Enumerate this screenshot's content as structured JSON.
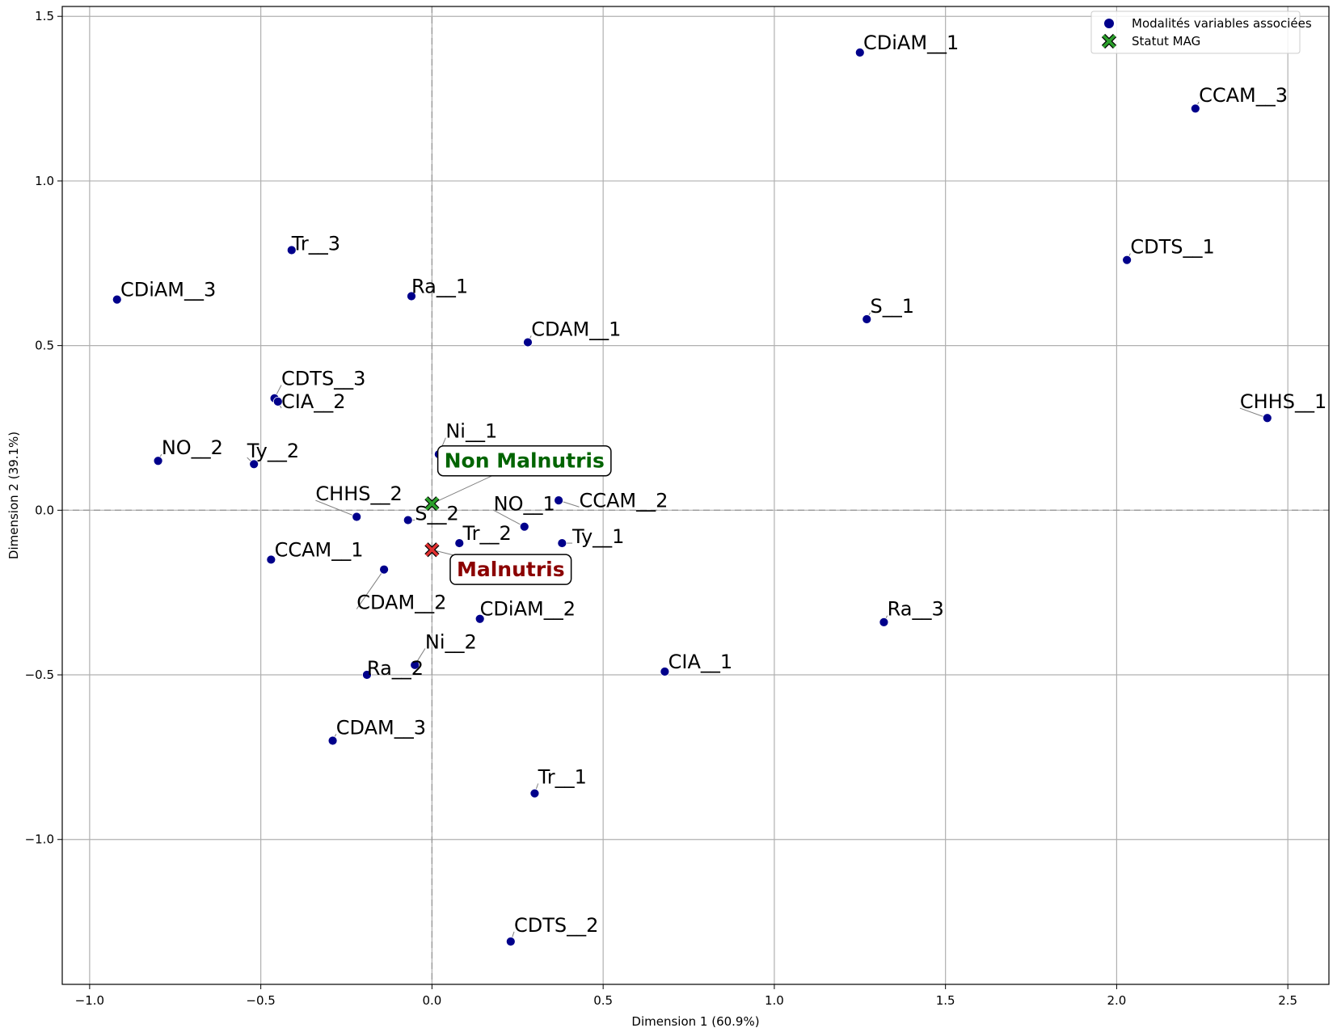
{
  "chart_data": {
    "type": "scatter",
    "xlabel": "Dimension 1 (60.9%)",
    "ylabel": "Dimension 2 (39.1%)",
    "xlim": [
      -1.08,
      2.62
    ],
    "ylim": [
      -1.44,
      1.53
    ],
    "x_ticks": [
      -1.0,
      -0.5,
      0.0,
      0.5,
      1.0,
      1.5,
      2.0,
      2.5
    ],
    "x_tick_labels": [
      "−1.0",
      "−0.5",
      "0.0",
      "0.5",
      "1.0",
      "1.5",
      "2.0",
      "2.5"
    ],
    "y_ticks": [
      1.5,
      1.0,
      0.5,
      0.0,
      -0.5,
      -1.0
    ],
    "y_tick_labels": [
      "1.5",
      "1.0",
      "0.5",
      "0.0",
      "−0.5",
      "−1.0"
    ],
    "grid": true,
    "zero_lines": true,
    "legend_position": "top-right",
    "legend": [
      {
        "label": "Modalités variables associées",
        "marker": "circle",
        "color": "#00008b"
      },
      {
        "label": "Statut MAG",
        "marker": "x",
        "color": "#2ca02c"
      }
    ],
    "colors": {
      "points": "#00008b",
      "non_malnutris": "#2ca02c",
      "malnutris": "#e03030",
      "non_malnutris_text": "#006400",
      "malnutris_text": "#8b0000",
      "grid": "#b0b0b0",
      "leader": "#808080"
    },
    "series": [
      {
        "name": "Modalités variables associées",
        "points": [
          {
            "label": "CDiAM__1",
            "x": 1.25,
            "y": 1.39,
            "lx": 1.26,
            "ly": 1.4
          },
          {
            "label": "CCAM__3",
            "x": 2.23,
            "y": 1.22,
            "lx": 2.24,
            "ly": 1.24
          },
          {
            "label": "Tr__3",
            "x": -0.41,
            "y": 0.79,
            "lx": -0.41,
            "ly": 0.79
          },
          {
            "label": "CDTS__1",
            "x": 2.03,
            "y": 0.76,
            "lx": 2.04,
            "ly": 0.78
          },
          {
            "label": "CDiAM__3",
            "x": -0.92,
            "y": 0.64,
            "lx": -0.91,
            "ly": 0.65
          },
          {
            "label": "Ra__1",
            "x": -0.06,
            "y": 0.65,
            "lx": -0.06,
            "ly": 0.66
          },
          {
            "label": "S__1",
            "x": 1.27,
            "y": 0.58,
            "lx": 1.28,
            "ly": 0.6
          },
          {
            "label": "CDAM__1",
            "x": 0.28,
            "y": 0.51,
            "lx": 0.29,
            "ly": 0.53
          },
          {
            "label": "CDTS__3",
            "x": -0.46,
            "y": 0.34,
            "lx": -0.44,
            "ly": 0.38
          },
          {
            "label": "CIA__2",
            "x": -0.45,
            "y": 0.33,
            "lx": -0.44,
            "ly": 0.31
          },
          {
            "label": "CHHS__1",
            "x": 2.44,
            "y": 0.28,
            "lx": 2.36,
            "ly": 0.31
          },
          {
            "label": "Ni__1",
            "x": 0.02,
            "y": 0.17,
            "lx": 0.04,
            "ly": 0.22
          },
          {
            "label": "NO__2",
            "x": -0.8,
            "y": 0.15,
            "lx": -0.79,
            "ly": 0.17
          },
          {
            "label": "Ty__2",
            "x": -0.52,
            "y": 0.14,
            "lx": -0.54,
            "ly": 0.16
          },
          {
            "label": "CCAM__2",
            "x": 0.37,
            "y": 0.03,
            "lx": 0.43,
            "ly": 0.01
          },
          {
            "label": "CHHS__2",
            "x": -0.22,
            "y": -0.02,
            "lx": -0.34,
            "ly": 0.03
          },
          {
            "label": "NO__1",
            "x": 0.27,
            "y": -0.05,
            "lx": 0.18,
            "ly": 0.0
          },
          {
            "label": "S__2",
            "x": -0.07,
            "y": -0.03,
            "lx": -0.05,
            "ly": -0.03
          },
          {
            "label": "Tr__2",
            "x": 0.08,
            "y": -0.1,
            "lx": 0.09,
            "ly": -0.09
          },
          {
            "label": "Ty__1",
            "x": 0.38,
            "y": -0.1,
            "lx": 0.41,
            "ly": -0.1
          },
          {
            "label": "CCAM__1",
            "x": -0.47,
            "y": -0.15,
            "lx": -0.46,
            "ly": -0.14
          },
          {
            "label": "CDAM__2",
            "x": -0.14,
            "y": -0.18,
            "lx": -0.22,
            "ly": -0.3
          },
          {
            "label": "CDiAM__2",
            "x": 0.14,
            "y": -0.33,
            "lx": 0.14,
            "ly": -0.32
          },
          {
            "label": "Ra__3",
            "x": 1.32,
            "y": -0.34,
            "lx": 1.33,
            "ly": -0.32
          },
          {
            "label": "Ni__2",
            "x": -0.05,
            "y": -0.47,
            "lx": -0.02,
            "ly": -0.42
          },
          {
            "label": "CIA__1",
            "x": 0.68,
            "y": -0.49,
            "lx": 0.69,
            "ly": -0.48
          },
          {
            "label": "Ra__2",
            "x": -0.19,
            "y": -0.5,
            "lx": -0.19,
            "ly": -0.5
          },
          {
            "label": "CDAM__3",
            "x": -0.29,
            "y": -0.7,
            "lx": -0.28,
            "ly": -0.68
          },
          {
            "label": "Tr__1",
            "x": 0.3,
            "y": -0.86,
            "lx": 0.31,
            "ly": -0.83
          },
          {
            "label": "CDTS__2",
            "x": 0.23,
            "y": -1.31,
            "lx": 0.24,
            "ly": -1.28
          }
        ]
      },
      {
        "name": "Statut MAG",
        "points": [
          {
            "label": "Non Malnutris",
            "x": 0.0,
            "y": 0.02,
            "lx": 0.27,
            "ly": 0.15,
            "color": "non_malnutris",
            "text_color": "non_malnutris_text"
          },
          {
            "label": "Malnutris",
            "x": 0.0,
            "y": -0.12,
            "lx": 0.23,
            "ly": -0.18,
            "color": "malnutris",
            "text_color": "malnutris_text"
          }
        ]
      }
    ]
  }
}
